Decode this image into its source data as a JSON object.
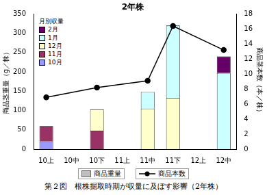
{
  "chart_data": {
    "type": "bar",
    "title": "2年株",
    "categories": [
      "10上",
      "10中",
      "10下",
      "11上",
      "11中",
      "11下",
      "12上",
      "12中"
    ],
    "series": [
      {
        "name": "10月",
        "color": "#9999ff",
        "values": [
          20,
          null,
          null,
          null,
          null,
          null,
          null,
          null
        ]
      },
      {
        "name": "11月",
        "color": "#993366",
        "values": [
          40,
          null,
          48,
          null,
          null,
          null,
          null,
          null
        ]
      },
      {
        "name": "12月",
        "color": "#ffffcc",
        "values": [
          null,
          null,
          55,
          null,
          105,
          133,
          null,
          null
        ]
      },
      {
        "name": "1月",
        "color": "#ccffff",
        "values": [
          null,
          null,
          null,
          null,
          43,
          187,
          null,
          197
        ]
      },
      {
        "name": "2月",
        "color": "#660066",
        "values": [
          null,
          null,
          null,
          null,
          null,
          null,
          null,
          43
        ]
      },
      {
        "name": "商品本数",
        "type": "line",
        "axis": "y2",
        "color": "#000000",
        "marker": "circle",
        "values": [
          6.9,
          null,
          8.2,
          null,
          9.1,
          16.4,
          null,
          13.2
        ]
      }
    ],
    "stacked": true,
    "ylabel": "商品茎重量（g／株）",
    "y2label": "商品茎本数（本／株）",
    "ylim": [
      0,
      350
    ],
    "yticks": [
      0,
      50,
      100,
      150,
      200,
      250,
      300,
      350
    ],
    "y2lim": [
      0,
      18
    ],
    "y2ticks": [
      0,
      2,
      4,
      6,
      8,
      10,
      12,
      14,
      16,
      18
    ],
    "grid": false,
    "legend": "upper left",
    "legend_title": "月別収量",
    "bar_legend_name": "商品重量",
    "caption": "第２図　根株掘取時期が収量に及ぼす影響（2年株）"
  }
}
